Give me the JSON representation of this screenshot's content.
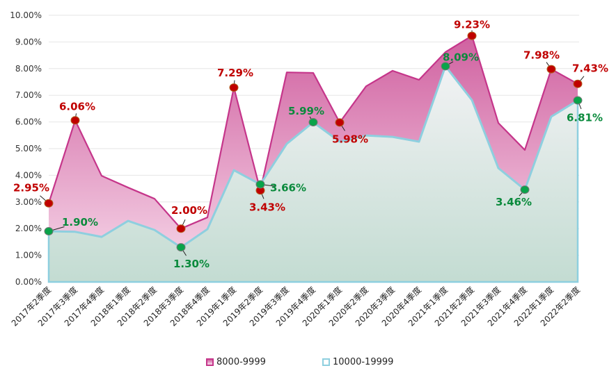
{
  "chart_data": {
    "type": "area",
    "categories": [
      "2017年2季度",
      "2017年3季度",
      "2017年4季度",
      "2018年1季度",
      "2018年2季度",
      "2018年3季度",
      "2018年4季度",
      "2019年1季度",
      "2019年2季度",
      "2019年3季度",
      "2019年4季度",
      "2020年1季度",
      "2020年2季度",
      "2020年3季度",
      "2020年4季度",
      "2021年1季度",
      "2021年2季度",
      "2021年3季度",
      "2021年4季度",
      "2022年1季度",
      "2022年2季度"
    ],
    "ylim": [
      0,
      10
    ],
    "yticks": [
      "0.00%",
      "1.00%",
      "2.00%",
      "3.00%",
      "4.00%",
      "5.00%",
      "6.00%",
      "7.00%",
      "8.00%",
      "9.00%",
      "10.00%"
    ],
    "grid": true,
    "legend_position": "bottom",
    "series": [
      {
        "name": "8000-9999",
        "color": "#c5358a",
        "label_color": "#c00000",
        "values": [
          2.95,
          6.06,
          3.98,
          3.54,
          3.12,
          2.0,
          2.42,
          7.29,
          3.43,
          7.86,
          7.84,
          5.98,
          7.34,
          7.92,
          7.58,
          8.62,
          9.23,
          5.96,
          4.95,
          7.98,
          7.43
        ],
        "labels": [
          "2.95%",
          "6.06%",
          null,
          null,
          null,
          "2.00%",
          null,
          "7.29%",
          "3.43%",
          null,
          null,
          "5.98%",
          null,
          null,
          null,
          null,
          "9.23%",
          null,
          null,
          "7.98%",
          "7.43%"
        ]
      },
      {
        "name": "10000-19999",
        "color": "#8ecfdf",
        "label_color": "#0a8a3c",
        "values": [
          1.9,
          1.88,
          1.69,
          2.29,
          1.95,
          1.3,
          1.98,
          4.19,
          3.66,
          5.18,
          5.99,
          5.26,
          5.49,
          5.44,
          5.26,
          8.09,
          6.82,
          4.27,
          3.46,
          6.2,
          6.81
        ],
        "labels": [
          "1.90%",
          null,
          null,
          null,
          null,
          "1.30%",
          null,
          null,
          "3.66%",
          null,
          "5.99%",
          null,
          null,
          null,
          null,
          "8.09%",
          null,
          null,
          "3.46%",
          null,
          "6.81%"
        ]
      }
    ]
  }
}
